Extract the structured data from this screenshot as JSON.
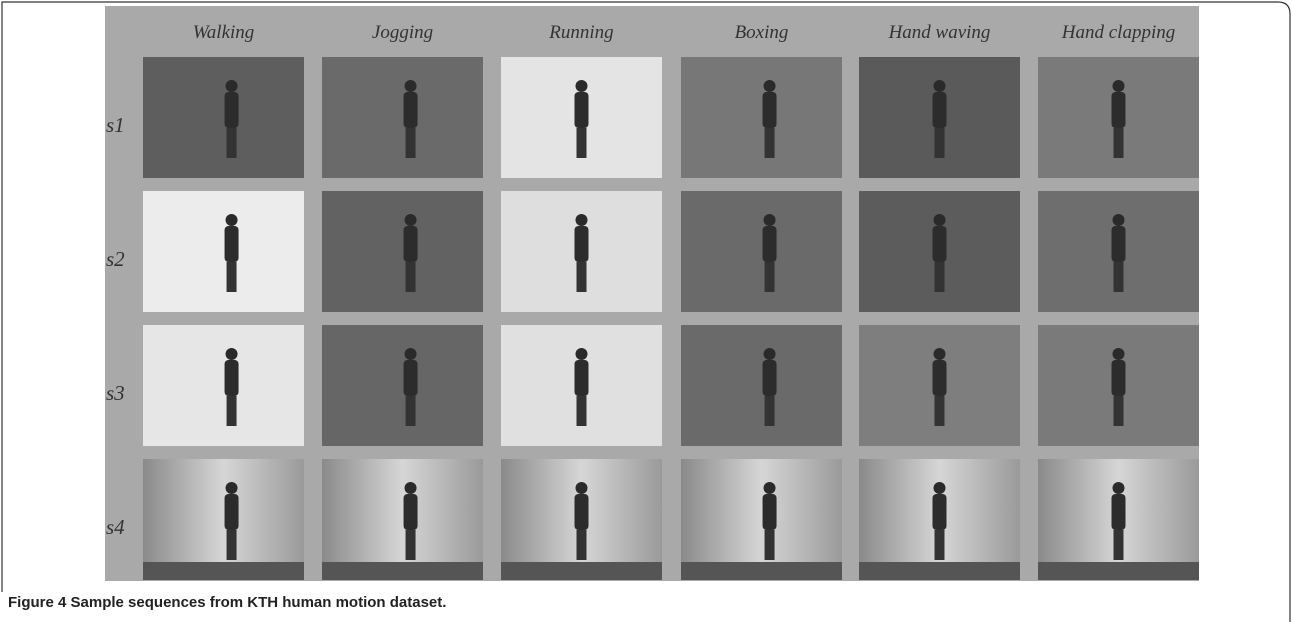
{
  "figure": {
    "columns": [
      "Walking",
      "Jogging",
      "Running",
      "Boxing",
      "Hand waving",
      "Hand clapping"
    ],
    "rows": [
      "s1",
      "s2",
      "s3",
      "s4"
    ],
    "caption": {
      "label": "Figure 4",
      "text": "Sample sequences from KTH human motion dataset."
    }
  }
}
